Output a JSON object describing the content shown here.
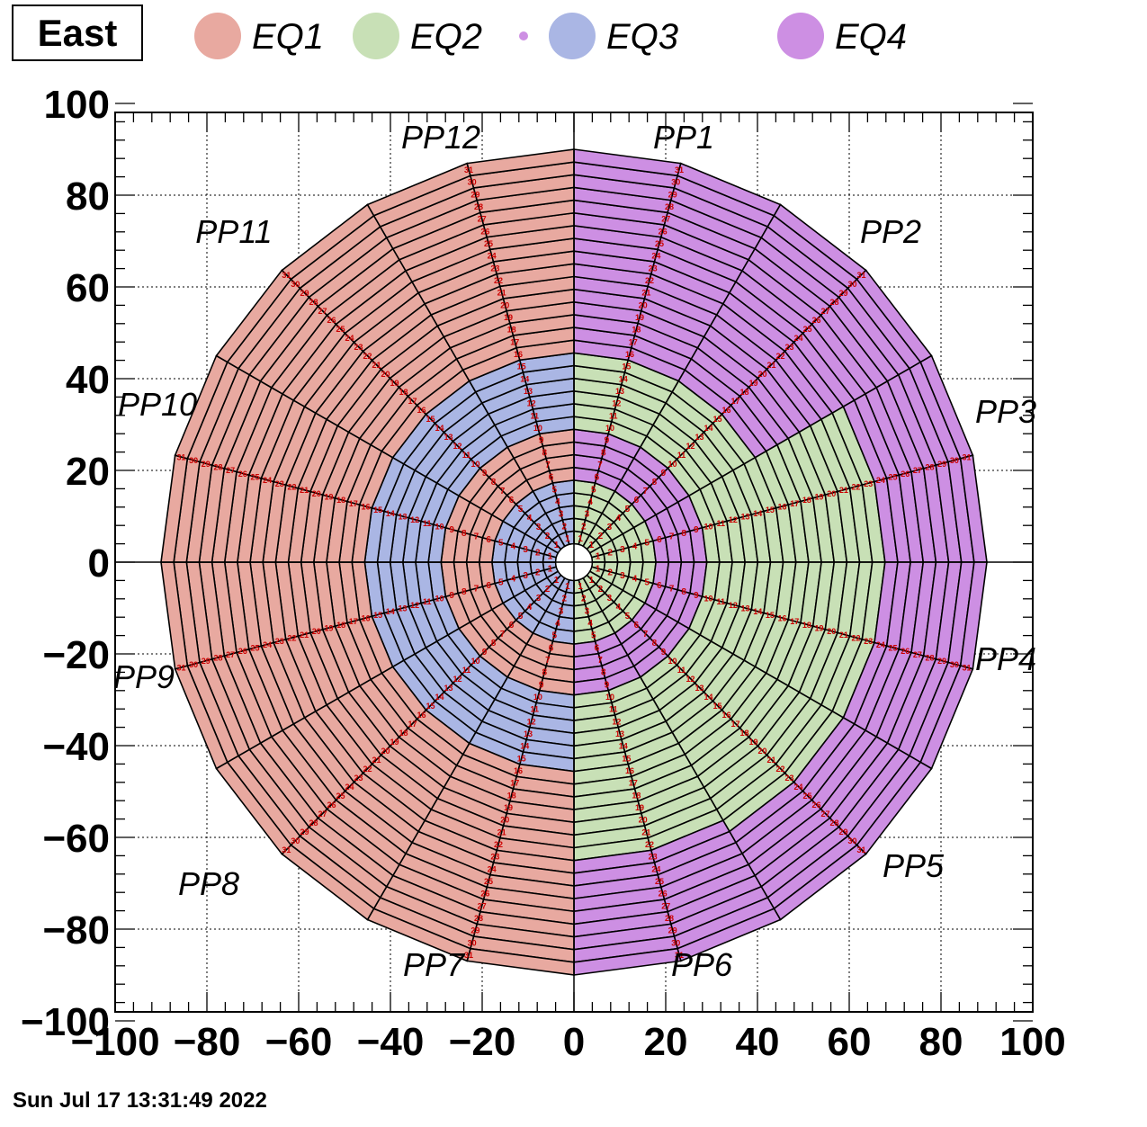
{
  "title": "East",
  "footer": "Sun Jul 17 13:31:49 2022",
  "legend": [
    {
      "label": "EQ1",
      "color": "#e8a9a0"
    },
    {
      "label": "EQ2",
      "color": "#c8e0b6"
    },
    {
      "label": "EQ3",
      "color": "#aab6e4"
    },
    {
      "label": "EQ4",
      "color": "#cd8fe3"
    }
  ],
  "sector_labels": [
    "PP1",
    "PP2",
    "PP3",
    "PP4",
    "PP5",
    "PP6",
    "PP7",
    "PP8",
    "PP9",
    "PP10",
    "PP11",
    "PP12"
  ],
  "grid_color": "#000000",
  "ring_number_color": "#cc0000",
  "chart_data": {
    "type": "diagram",
    "xlim": [
      -100,
      100
    ],
    "ylim": [
      -100,
      100
    ],
    "x_ticks": [
      "−100",
      "−80",
      "−60",
      "−40",
      "−20",
      "0",
      "20",
      "40",
      "60",
      "80",
      "100"
    ],
    "y_ticks": [
      "100",
      "80",
      "60",
      "40",
      "20",
      "0",
      "−20",
      "−40",
      "−60",
      "−80",
      "−100"
    ],
    "grid": true,
    "rows_per_sector": 31,
    "sectors": 12,
    "inner_radius": 4,
    "outer_radius": 90
  }
}
